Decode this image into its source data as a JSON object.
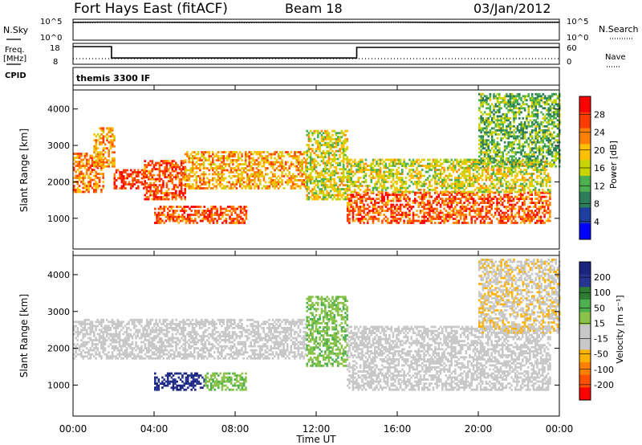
{
  "header": {
    "title": "Fort Hays East (fitACF)",
    "beam": "Beam 18",
    "date": "03/Jan/2012"
  },
  "status_panel": {
    "nsky_label": "N.Sky",
    "nsearch_label": "N.Search",
    "noise_ticks_left": [
      "10^5",
      "10^0"
    ],
    "noise_ticks_right": [
      "10^5",
      "10^0"
    ],
    "freq_label": "Freq.",
    "freq_unit": "[MHz]",
    "freq_ticks": [
      "18",
      "8"
    ],
    "nave_label": "Nave",
    "nave_ticks": [
      "60",
      "0"
    ],
    "cpid_label": "CPID",
    "cpid_value": "themis 3300 IF"
  },
  "axes": {
    "ylabel": "Slant Range [km]",
    "xlabel": "Time UT",
    "yticks": [
      "1000",
      "2000",
      "3000",
      "4000"
    ],
    "xticks": [
      "00:00",
      "04:00",
      "08:00",
      "12:00",
      "16:00",
      "20:00",
      "00:00"
    ]
  },
  "power_scale": {
    "label": "Power [dB]",
    "ticks": [
      "28",
      "24",
      "20",
      "16",
      "12",
      "8",
      "4"
    ],
    "colors": [
      "#ff0000",
      "#ff3c00",
      "#ff8000",
      "#ffc000",
      "#c8d400",
      "#4caf50",
      "#2e7d5a",
      "#1e3fa0",
      "#0000ff"
    ]
  },
  "velocity_scale": {
    "label": "Velocity [m s⁻¹]",
    "ticks": [
      "200",
      "100",
      "50",
      "15",
      "-15",
      "-50",
      "-100",
      "-200"
    ],
    "colors": [
      "#1a237e",
      "#283593",
      "#2e7d32",
      "#4caf50",
      "#8bc34a",
      "#c8c8c8",
      "#c8c8c8",
      "#ffb300",
      "#ff8000",
      "#ff5000",
      "#ff0000"
    ]
  },
  "chart_data": [
    {
      "type": "line",
      "name": "noise",
      "x_range": [
        0,
        24
      ],
      "y_scale": "log",
      "y_range": [
        1,
        100000
      ],
      "x": [
        0,
        2,
        4,
        6,
        8,
        10,
        12,
        14,
        16,
        18,
        20,
        22,
        24
      ],
      "series": [
        {
          "values": [
            40000,
            45000,
            42000,
            40000,
            38000,
            41000,
            39000,
            42000,
            44000,
            40000,
            39000,
            41000,
            43000
          ]
        },
        {
          "values": [
            30000,
            33000,
            31000,
            30000,
            29000,
            31000,
            30000,
            32000,
            33000,
            31000,
            30000,
            31000,
            32000
          ]
        }
      ]
    },
    {
      "type": "line",
      "name": "freq_nave",
      "x_range": [
        0,
        24
      ],
      "y_range_freq": [
        8,
        18
      ],
      "y_range_nave": [
        0,
        60
      ],
      "freq_x": [
        0,
        1.9,
        1.9,
        14.0,
        14.0,
        24
      ],
      "freq_values": [
        17.5,
        17.5,
        10.4,
        10.4,
        17.0,
        17.0
      ],
      "nave_x": [
        0,
        24
      ],
      "nave_values": [
        12,
        12
      ]
    },
    {
      "type": "heatmap",
      "name": "power",
      "x_range": [
        0,
        24
      ],
      "y_range": [
        180,
        4500
      ],
      "z_range": [
        0,
        30
      ],
      "regions": [
        {
          "x": [
            0,
            1.5
          ],
          "y": [
            1700,
            2800
          ],
          "z": 22
        },
        {
          "x": [
            1.0,
            2.0
          ],
          "y": [
            2400,
            3500
          ],
          "z": 20
        },
        {
          "x": [
            2.0,
            3.5
          ],
          "y": [
            1800,
            2300
          ],
          "z": 26
        },
        {
          "x": [
            3.5,
            5.5
          ],
          "y": [
            1500,
            2600
          ],
          "z": 24
        },
        {
          "x": [
            5.5,
            11.5
          ],
          "y": [
            1800,
            2800
          ],
          "z": 20
        },
        {
          "x": [
            4.0,
            8.5
          ],
          "y": [
            850,
            1300
          ],
          "z": 24
        },
        {
          "x": [
            11.5,
            13.5
          ],
          "y": [
            1500,
            3400
          ],
          "z": 16
        },
        {
          "x": [
            13.5,
            23.5
          ],
          "y": [
            850,
            1700
          ],
          "z": 24
        },
        {
          "x": [
            13.5,
            23.5
          ],
          "y": [
            1700,
            2600
          ],
          "z": 16
        },
        {
          "x": [
            20.0,
            24
          ],
          "y": [
            2400,
            4400
          ],
          "z": 12
        }
      ]
    },
    {
      "type": "heatmap",
      "name": "velocity",
      "x_range": [
        0,
        24
      ],
      "y_range": [
        180,
        4500
      ],
      "z_range": [
        -250,
        250
      ],
      "regions": [
        {
          "x": [
            0,
            11.5
          ],
          "y": [
            1700,
            2800
          ],
          "z": 0
        },
        {
          "x": [
            4.0,
            6.5
          ],
          "y": [
            850,
            1300
          ],
          "z": 200
        },
        {
          "x": [
            6.5,
            8.5
          ],
          "y": [
            850,
            1300
          ],
          "z": 60
        },
        {
          "x": [
            11.5,
            13.5
          ],
          "y": [
            1500,
            3400
          ],
          "z": 60
        },
        {
          "x": [
            13.5,
            23.5
          ],
          "y": [
            850,
            2600
          ],
          "z": 0
        },
        {
          "x": [
            20.0,
            24
          ],
          "y": [
            2400,
            4400
          ],
          "z": -60
        }
      ]
    }
  ]
}
